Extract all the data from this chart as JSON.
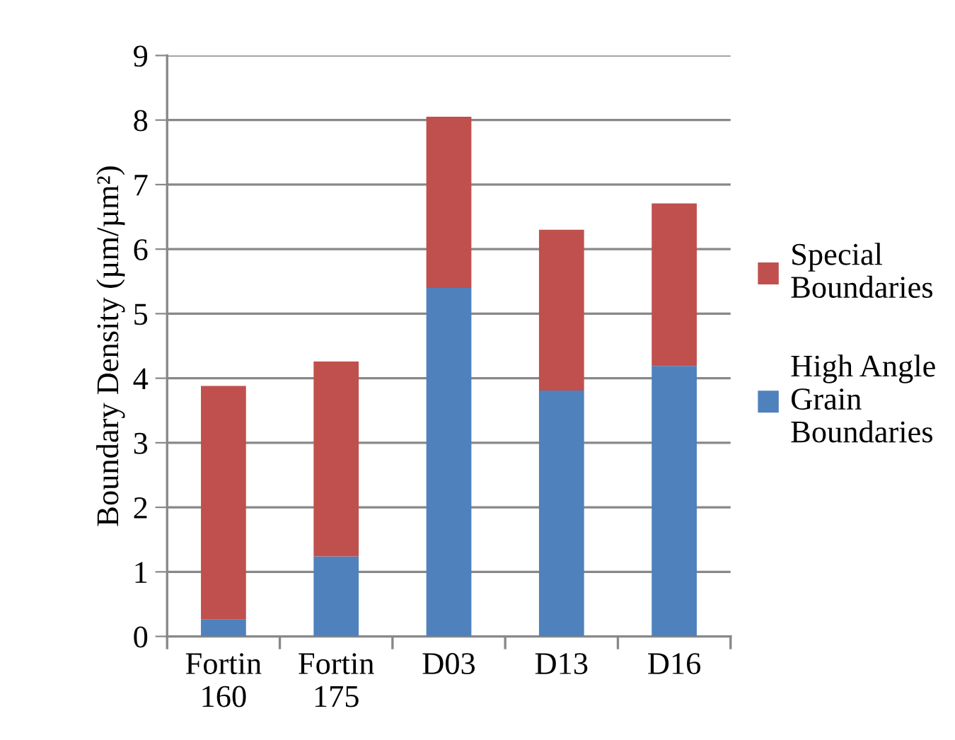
{
  "chart_data": {
    "type": "bar",
    "stacked": true,
    "ylabel": "Boundary Density (µm/µm²)",
    "categories": [
      "Fortin\n160",
      "Fortin\n175",
      "D03",
      "D13",
      "D16"
    ],
    "series": [
      {
        "name": "High Angle\nGrain\nBoundaries",
        "color": "#4f81bd",
        "values": [
          0.26,
          1.24,
          5.4,
          3.81,
          4.19
        ]
      },
      {
        "name": "Special\nBoundaries",
        "color": "#c0504d",
        "values": [
          3.62,
          3.02,
          2.65,
          2.49,
          2.52
        ]
      }
    ],
    "ylim": [
      0,
      9
    ],
    "yticks": [
      0,
      1,
      2,
      3,
      4,
      5,
      6,
      7,
      8,
      9
    ],
    "grid": "y",
    "legend": "right"
  }
}
